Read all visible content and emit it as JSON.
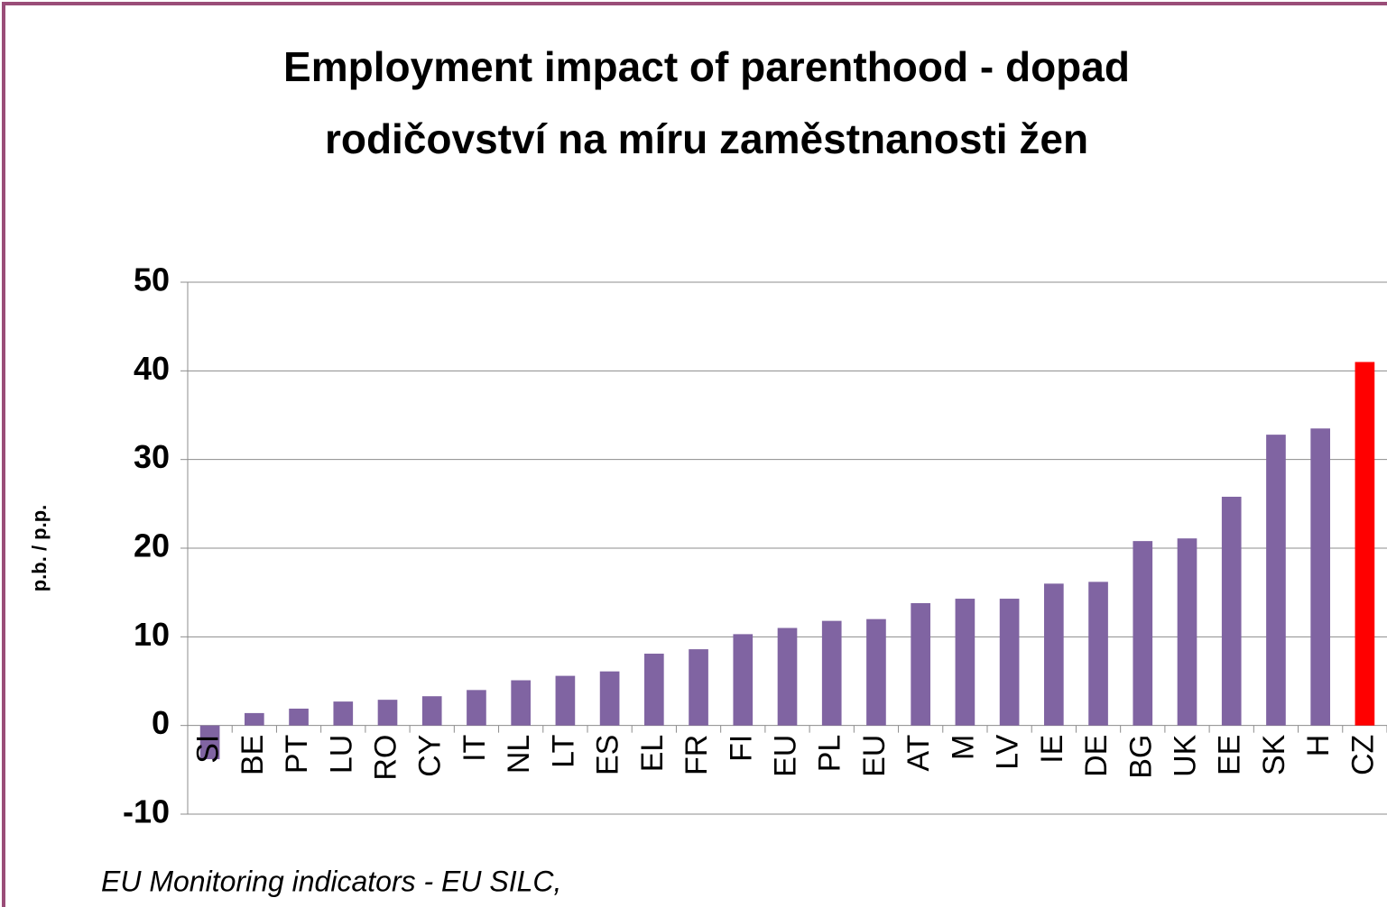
{
  "chart_data": {
    "type": "bar",
    "title": [
      "Employment impact of parenthood - dopad",
      "rodičovství na míru zaměstnanosti žen"
    ],
    "y_label": "p.b. / p.p.",
    "footnote": "EU Monitoring  indicators - EU SILC,",
    "categories": [
      "SI",
      "BE",
      "PT",
      "LU",
      "RO",
      "CY",
      "IT",
      "NL",
      "LT",
      "ES",
      "EL",
      "FR",
      "FI",
      "EU",
      "PL",
      "EU",
      "AT",
      "M",
      "LV",
      "IE",
      "DE",
      "BG",
      "UK",
      "EE",
      "SK",
      "H",
      "CZ"
    ],
    "values": [
      -3.8,
      1.4,
      1.9,
      2.7,
      2.9,
      3.3,
      4.0,
      5.1,
      5.6,
      6.1,
      8.1,
      8.6,
      10.3,
      11.0,
      11.8,
      12.0,
      13.8,
      14.3,
      14.3,
      16.0,
      16.2,
      20.8,
      21.1,
      25.8,
      32.8,
      33.5,
      41.0
    ],
    "colors": [
      "#8064a2",
      "#8064a2",
      "#8064a2",
      "#8064a2",
      "#8064a2",
      "#8064a2",
      "#8064a2",
      "#8064a2",
      "#8064a2",
      "#8064a2",
      "#8064a2",
      "#8064a2",
      "#8064a2",
      "#8064a2",
      "#8064a2",
      "#8064a2",
      "#8064a2",
      "#8064a2",
      "#8064a2",
      "#8064a2",
      "#8064a2",
      "#8064a2",
      "#8064a2",
      "#8064a2",
      "#8064a2",
      "#8064a2",
      "#ff0000"
    ],
    "ylim": [
      -10,
      50
    ],
    "yticks": [
      -10,
      0,
      10,
      20,
      30,
      40,
      50
    ],
    "grid": true
  }
}
